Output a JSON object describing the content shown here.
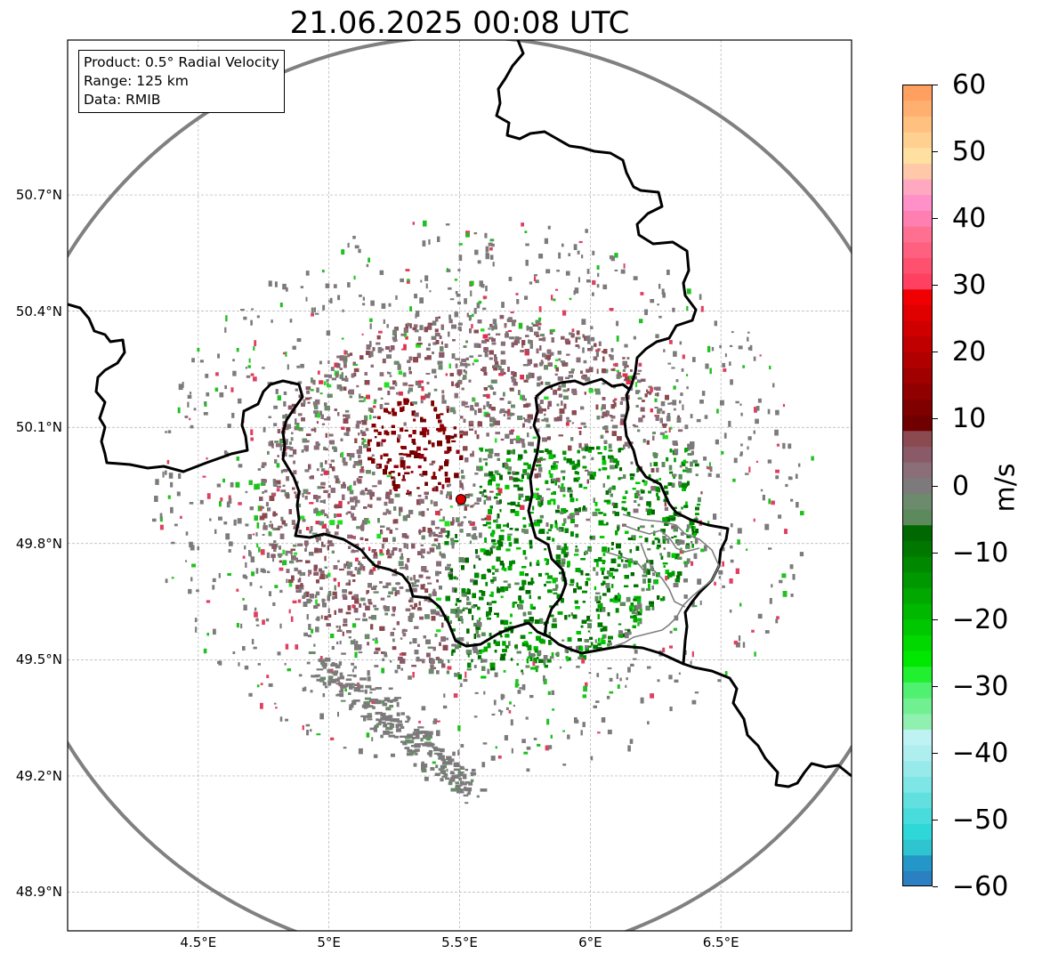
{
  "title": "21.06.2025 00:08 UTC",
  "info": {
    "product": "Product: 0.5° Radial Velocity",
    "range": "Range: 125 km",
    "data": "Data: RMIB"
  },
  "map": {
    "lon_range": [
      4.0,
      7.0
    ],
    "lat_range": [
      48.8,
      51.1
    ],
    "lon_ticks": [
      {
        "value": 4.5,
        "label": "4.5°E"
      },
      {
        "value": 5.0,
        "label": "5°E"
      },
      {
        "value": 5.5,
        "label": "5.5°E"
      },
      {
        "value": 6.0,
        "label": "6°E"
      },
      {
        "value": 6.5,
        "label": "6.5°E"
      }
    ],
    "lat_ticks": [
      {
        "value": 50.7,
        "label": "50.7°N"
      },
      {
        "value": 50.4,
        "label": "50.4°N"
      },
      {
        "value": 50.1,
        "label": "50.1°N"
      },
      {
        "value": 49.8,
        "label": "49.8°N"
      },
      {
        "value": 49.5,
        "label": "49.5°N"
      },
      {
        "value": 49.2,
        "label": "49.2°N"
      },
      {
        "value": 48.9,
        "label": "48.9°N"
      }
    ],
    "radar_site": {
      "lon": 5.505,
      "lat": 49.914,
      "color": "#e00000"
    },
    "range_ring_km": 125,
    "range_ring_color": "#808080",
    "border_color": "#000000",
    "grid": true
  },
  "colorbar": {
    "unit": "m/s",
    "min": -60,
    "max": 60,
    "ticks": [
      {
        "value": 60,
        "label": "60"
      },
      {
        "value": 50,
        "label": "50"
      },
      {
        "value": 40,
        "label": "40"
      },
      {
        "value": 30,
        "label": "30"
      },
      {
        "value": 20,
        "label": "20"
      },
      {
        "value": 10,
        "label": "10"
      },
      {
        "value": 0,
        "label": "0"
      },
      {
        "value": -10,
        "label": "−10"
      },
      {
        "value": -20,
        "label": "−20"
      },
      {
        "value": -30,
        "label": "−30"
      },
      {
        "value": -40,
        "label": "−40"
      },
      {
        "value": -50,
        "label": "−50"
      },
      {
        "value": -60,
        "label": "−60"
      }
    ],
    "colors": [
      "#2a80c0",
      "#2596c8",
      "#2ec4d0",
      "#2ed8d8",
      "#48dcdc",
      "#62e0e0",
      "#7ee6e6",
      "#98eaea",
      "#aeeeee",
      "#bff2f2",
      "#90f0b0",
      "#70f090",
      "#50f070",
      "#20f030",
      "#00e800",
      "#00d800",
      "#00c800",
      "#00b800",
      "#00a800",
      "#009800",
      "#008800",
      "#007800",
      "#006800",
      "#5c8a5c",
      "#6c8a6c",
      "#7c7a7a",
      "#8a6e78",
      "#8a5a68",
      "#8a4a50",
      "#700000",
      "#800000",
      "#900000",
      "#a00000",
      "#b00000",
      "#c00000",
      "#d00000",
      "#e00000",
      "#f00000",
      "#ff4060",
      "#ff5070",
      "#ff6080",
      "#ff7090",
      "#ff80b0",
      "#ff90c8",
      "#ffa8c0",
      "#ffc8a8",
      "#ffe0a0",
      "#ffd090",
      "#ffc080",
      "#ffb070",
      "#ffa060"
    ]
  }
}
